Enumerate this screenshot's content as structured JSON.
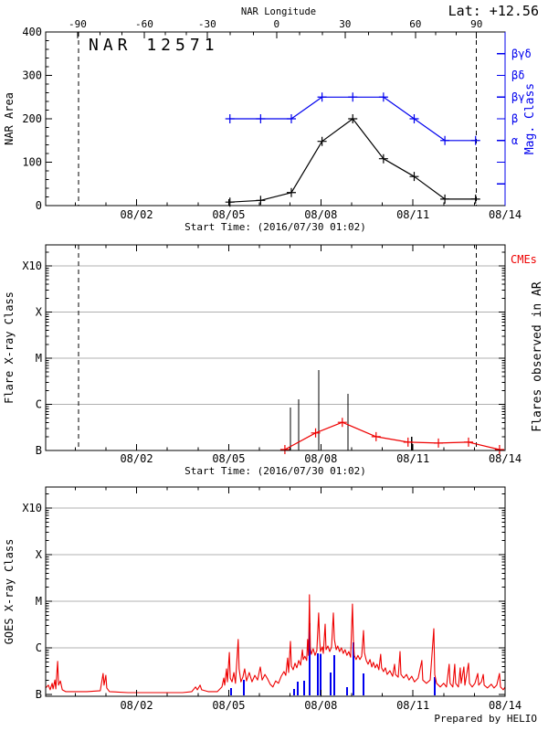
{
  "page": {
    "background": "#ffffff"
  },
  "header": {
    "latitude_label": "Lat: +12.56",
    "region_title": "NAR 12571"
  },
  "footer": {
    "credit": "Prepared by HELIO"
  },
  "colors": {
    "blue": "#0000ee",
    "red": "#ee0000",
    "black": "#000000",
    "grid": "#b0b0b0"
  },
  "chart_data": [
    {
      "type": "line",
      "title": "NAR 12571",
      "ylabel": "NAR Area",
      "ylim": [
        0,
        400
      ],
      "yticks": [
        0,
        100,
        200,
        300,
        400
      ],
      "y_minor_step": 20,
      "top_axis": {
        "title": "NAR Longitude",
        "tick_degrees": [
          -90,
          -60,
          -30,
          0,
          30,
          60,
          90
        ],
        "tick_days": [
          1.04,
          3.21,
          5.26,
          7.52,
          9.75,
          12.04,
          14.03
        ],
        "minor_step_deg": 10
      },
      "right_axis": {
        "title": "Mag. Class",
        "tick_values": [
          50,
          100,
          150,
          200,
          250,
          300,
          350
        ],
        "tick_labels": [
          "",
          "",
          "α",
          "β",
          "βγ",
          "βδ",
          "βγδ"
        ]
      },
      "x_axis": {
        "title": "Start Time: (2016/07/30 01:02)",
        "tick_labels": [
          "08/02",
          "08/05",
          "08/08",
          "08/11",
          "08/14"
        ],
        "tick_days": [
          2.96,
          5.96,
          8.96,
          11.96,
          14.96
        ],
        "minor_first_day": 0.96,
        "minor_step_day": 1,
        "range_days": [
          0,
          14.96
        ]
      },
      "limb_crossing_days": [
        1.07,
        14.02
      ],
      "series": [
        {
          "name": "NAR Area",
          "color": "black",
          "marker": "plus",
          "days": [
            6,
            7,
            8,
            9,
            10,
            11,
            12,
            13,
            14
          ],
          "values": [
            8,
            12,
            30,
            148,
            200,
            108,
            67,
            15,
            15
          ]
        },
        {
          "name": "Magnetic Class",
          "color": "blue",
          "marker": "plus",
          "days": [
            6,
            7,
            8,
            9,
            10,
            11,
            12,
            13,
            14
          ],
          "values": [
            200,
            200,
            200,
            250,
            250,
            250,
            200,
            150,
            150
          ],
          "class_labels": [
            "β",
            "β",
            "β",
            "βγ",
            "βγ",
            "βγ",
            "β",
            "α",
            "α"
          ]
        }
      ]
    },
    {
      "type": "event-line",
      "ylabel": "Flare X-ray Class",
      "ytick_labels": [
        "B",
        "C",
        "M",
        "X",
        "X10"
      ],
      "y_unit": "decades above GOES class B (1e-7 W/m2)",
      "right_label_top": "CMEs",
      "right_label": "Flares observed in AR",
      "x_axis": {
        "title": "Start Time: (2016/07/30 01:02)",
        "tick_labels": [
          "08/02",
          "08/05",
          "08/08",
          "08/11",
          "08/14"
        ],
        "tick_days": [
          2.96,
          5.96,
          8.96,
          11.96,
          14.96
        ],
        "minor_first_day": 0.96,
        "minor_step_day": 1,
        "range_days": [
          0,
          14.96
        ]
      },
      "limb_crossing_days": [
        1.07,
        14.02
      ],
      "flares": {
        "color": "black",
        "events": [
          [
            7.97,
            0.93
          ],
          [
            8.24,
            1.11
          ],
          [
            8.89,
            1.74
          ],
          [
            9.84,
            1.23
          ],
          [
            11.92,
            0.3
          ]
        ]
      },
      "cme_flux_series": {
        "color": "red",
        "marker": "plus",
        "points": [
          [
            7.79,
            0.02
          ],
          [
            8.79,
            0.38
          ],
          [
            9.66,
            0.61
          ],
          [
            10.76,
            0.3
          ],
          [
            11.8,
            0.18
          ],
          [
            12.79,
            0.16
          ],
          [
            13.77,
            0.18
          ],
          [
            14.78,
            0.02
          ]
        ]
      }
    },
    {
      "type": "line",
      "ylabel": "GOES X-ray Class",
      "ytick_labels": [
        "B",
        "C",
        "M",
        "X",
        "X10"
      ],
      "y_unit": "decades above GOES class B (1e-7 W/m2)",
      "x_axis": {
        "title": "",
        "tick_labels": [
          "08/02",
          "08/05",
          "08/08",
          "08/11",
          "08/14"
        ],
        "tick_days": [
          2.96,
          5.96,
          8.96,
          11.96,
          14.96
        ],
        "minor_first_day": 0.96,
        "minor_step_day": 1,
        "range_days": [
          0,
          14.96
        ]
      },
      "flare_bars": {
        "color": "blue",
        "events": [
          [
            6.04,
            0.14
          ],
          [
            6.46,
            0.31
          ],
          [
            8.09,
            0.12
          ],
          [
            8.21,
            0.27
          ],
          [
            8.41,
            0.29
          ],
          [
            8.59,
            1.53
          ],
          [
            8.86,
            0.88
          ],
          [
            8.95,
            0.87
          ],
          [
            9.28,
            0.47
          ],
          [
            9.4,
            0.84
          ],
          [
            9.81,
            0.16
          ],
          [
            10.02,
            1.12
          ],
          [
            10.35,
            0.45
          ],
          [
            12.67,
            0.37
          ]
        ]
      },
      "flux_series": {
        "color": "red",
        "points": [
          [
            0,
            0.14
          ],
          [
            0.09,
            0.2
          ],
          [
            0.15,
            0.1
          ],
          [
            0.21,
            0.24
          ],
          [
            0.24,
            0.12
          ],
          [
            0.3,
            0.31
          ],
          [
            0.33,
            0.12
          ],
          [
            0.39,
            0.71
          ],
          [
            0.42,
            0.2
          ],
          [
            0.48,
            0.29
          ],
          [
            0.54,
            0.1
          ],
          [
            0.65,
            0.06
          ],
          [
            0.89,
            0.06
          ],
          [
            1.34,
            0.06
          ],
          [
            1.78,
            0.08
          ],
          [
            1.87,
            0.45
          ],
          [
            1.9,
            0.2
          ],
          [
            1.96,
            0.41
          ],
          [
            1.99,
            0.14
          ],
          [
            2.08,
            0.06
          ],
          [
            2.68,
            0.04
          ],
          [
            3.57,
            0.04
          ],
          [
            4.46,
            0.04
          ],
          [
            4.76,
            0.06
          ],
          [
            4.88,
            0.16
          ],
          [
            4.94,
            0.1
          ],
          [
            5.03,
            0.2
          ],
          [
            5.08,
            0.1
          ],
          [
            5.29,
            0.06
          ],
          [
            5.59,
            0.06
          ],
          [
            5.74,
            0.16
          ],
          [
            5.8,
            0.35
          ],
          [
            5.83,
            0.2
          ],
          [
            5.89,
            0.55
          ],
          [
            5.92,
            0.27
          ],
          [
            5.98,
            0.9
          ],
          [
            6.01,
            0.35
          ],
          [
            6.07,
            0.27
          ],
          [
            6.13,
            0.47
          ],
          [
            6.18,
            0.24
          ],
          [
            6.27,
            1.18
          ],
          [
            6.3,
            0.55
          ],
          [
            6.36,
            0.27
          ],
          [
            6.42,
            0.37
          ],
          [
            6.48,
            0.55
          ],
          [
            6.54,
            0.29
          ],
          [
            6.63,
            0.47
          ],
          [
            6.72,
            0.27
          ],
          [
            6.81,
            0.41
          ],
          [
            6.9,
            0.31
          ],
          [
            6.99,
            0.59
          ],
          [
            7.05,
            0.31
          ],
          [
            7.14,
            0.43
          ],
          [
            7.23,
            0.33
          ],
          [
            7.31,
            0.22
          ],
          [
            7.4,
            0.16
          ],
          [
            7.49,
            0.29
          ],
          [
            7.58,
            0.24
          ],
          [
            7.67,
            0.39
          ],
          [
            7.76,
            0.49
          ],
          [
            7.82,
            0.41
          ],
          [
            7.88,
            0.78
          ],
          [
            7.91,
            0.47
          ],
          [
            7.97,
            1.14
          ],
          [
            8,
            0.61
          ],
          [
            8.06,
            0.53
          ],
          [
            8.12,
            0.67
          ],
          [
            8.18,
            0.57
          ],
          [
            8.24,
            0.73
          ],
          [
            8.3,
            0.63
          ],
          [
            8.36,
            0.96
          ],
          [
            8.39,
            0.75
          ],
          [
            8.44,
            0.82
          ],
          [
            8.5,
            0.73
          ],
          [
            8.53,
            1.18
          ],
          [
            8.56,
            0.84
          ],
          [
            8.59,
            2.14
          ],
          [
            8.62,
            1
          ],
          [
            8.65,
            0.86
          ],
          [
            8.71,
            0.98
          ],
          [
            8.77,
            0.84
          ],
          [
            8.83,
            0.94
          ],
          [
            8.89,
            1.75
          ],
          [
            8.92,
            1.18
          ],
          [
            8.95,
            0.92
          ],
          [
            9.01,
            1.02
          ],
          [
            9.04,
            0.88
          ],
          [
            9.1,
            1.51
          ],
          [
            9.13,
            0.96
          ],
          [
            9.19,
            1.04
          ],
          [
            9.25,
            0.92
          ],
          [
            9.31,
            1.02
          ],
          [
            9.37,
            1.75
          ],
          [
            9.4,
            1.18
          ],
          [
            9.46,
            0.96
          ],
          [
            9.51,
            1.04
          ],
          [
            9.57,
            0.92
          ],
          [
            9.63,
            1
          ],
          [
            9.69,
            0.88
          ],
          [
            9.75,
            0.96
          ],
          [
            9.81,
            0.84
          ],
          [
            9.87,
            0.92
          ],
          [
            9.93,
            0.8
          ],
          [
            9.99,
            1.94
          ],
          [
            10.02,
            1.18
          ],
          [
            10.05,
            0.84
          ],
          [
            10.11,
            0.75
          ],
          [
            10.17,
            0.84
          ],
          [
            10.23,
            0.75
          ],
          [
            10.29,
            0.82
          ],
          [
            10.35,
            1.37
          ],
          [
            10.38,
            0.9
          ],
          [
            10.44,
            0.73
          ],
          [
            10.5,
            0.65
          ],
          [
            10.56,
            0.75
          ],
          [
            10.62,
            0.59
          ],
          [
            10.67,
            0.69
          ],
          [
            10.73,
            0.57
          ],
          [
            10.79,
            0.65
          ],
          [
            10.85,
            0.53
          ],
          [
            10.91,
            0.86
          ],
          [
            10.94,
            0.57
          ],
          [
            11,
            0.49
          ],
          [
            11.06,
            0.57
          ],
          [
            11.12,
            0.43
          ],
          [
            11.21,
            0.51
          ],
          [
            11.3,
            0.39
          ],
          [
            11.36,
            0.65
          ],
          [
            11.39,
            0.43
          ],
          [
            11.48,
            0.37
          ],
          [
            11.54,
            0.92
          ],
          [
            11.57,
            0.43
          ],
          [
            11.66,
            0.35
          ],
          [
            11.75,
            0.43
          ],
          [
            11.83,
            0.31
          ],
          [
            11.92,
            0.39
          ],
          [
            12.01,
            0.27
          ],
          [
            12.13,
            0.35
          ],
          [
            12.25,
            0.73
          ],
          [
            12.28,
            0.31
          ],
          [
            12.4,
            0.24
          ],
          [
            12.52,
            0.31
          ],
          [
            12.64,
            1.41
          ],
          [
            12.67,
            0.43
          ],
          [
            12.73,
            0.24
          ],
          [
            12.85,
            0.16
          ],
          [
            12.96,
            0.24
          ],
          [
            13.05,
            0.16
          ],
          [
            13.14,
            0.65
          ],
          [
            13.17,
            0.24
          ],
          [
            13.26,
            0.16
          ],
          [
            13.32,
            0.65
          ],
          [
            13.35,
            0.24
          ],
          [
            13.44,
            0.16
          ],
          [
            13.5,
            0.57
          ],
          [
            13.53,
            0.24
          ],
          [
            13.62,
            0.59
          ],
          [
            13.65,
            0.2
          ],
          [
            13.77,
            0.67
          ],
          [
            13.8,
            0.24
          ],
          [
            13.89,
            0.16
          ],
          [
            13.98,
            0.24
          ],
          [
            14.07,
            0.45
          ],
          [
            14.1,
            0.2
          ],
          [
            14.19,
            0.27
          ],
          [
            14.25,
            0.43
          ],
          [
            14.28,
            0.2
          ],
          [
            14.39,
            0.14
          ],
          [
            14.51,
            0.22
          ],
          [
            14.6,
            0.14
          ],
          [
            14.69,
            0.2
          ],
          [
            14.78,
            0.45
          ],
          [
            14.81,
            0.16
          ],
          [
            14.9,
            0.1
          ],
          [
            14.96,
            0.16
          ]
        ]
      }
    }
  ]
}
